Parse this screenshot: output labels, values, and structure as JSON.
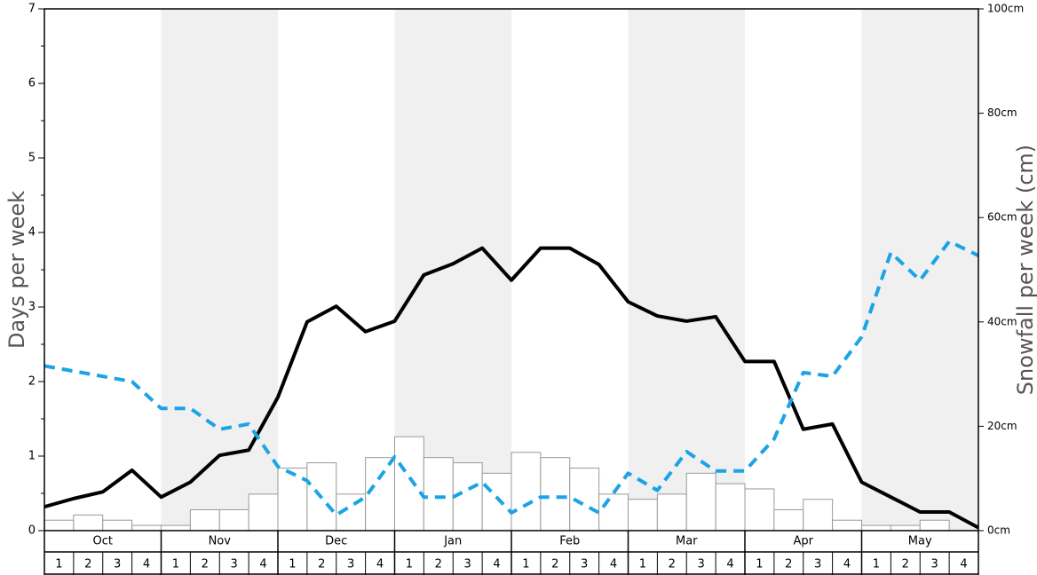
{
  "chart_data": {
    "type": "bar-line",
    "ylabel": "Days per week",
    "y2label": "Snowfall per week (cm)",
    "months": [
      "Oct",
      "Nov",
      "Dec",
      "Jan",
      "Feb",
      "Mar",
      "Apr",
      "May"
    ],
    "weeks": [
      1,
      2,
      3,
      4
    ],
    "shaded_months": [
      false,
      true,
      false,
      true,
      false,
      true,
      false,
      true
    ],
    "shade_color": "#f0f0f0",
    "ylim": [
      0,
      7
    ],
    "yticks": [
      0,
      1,
      2,
      3,
      4,
      5,
      6,
      7
    ],
    "y2lim": [
      0,
      100
    ],
    "y2ticks": [
      {
        "value": 0,
        "label": "0cm"
      },
      {
        "value": 20,
        "label": "20cm"
      },
      {
        "value": 40,
        "label": "40cm"
      },
      {
        "value": 60,
        "label": "60cm"
      },
      {
        "value": 80,
        "label": "80cm"
      },
      {
        "value": 100,
        "label": "100cm"
      }
    ],
    "bars": {
      "axis": "y2",
      "color": "#ffffff",
      "edge_color": "#999999",
      "values": [
        2,
        3,
        2,
        1,
        1,
        4,
        4,
        7,
        12,
        13,
        7,
        14,
        18,
        14,
        13,
        11,
        15,
        14,
        12,
        7,
        6,
        7,
        11,
        9,
        8,
        4,
        6,
        2,
        1,
        1,
        2,
        0
      ]
    },
    "series": [
      {
        "color": "#000000",
        "style": "solid",
        "values": [
          0.32,
          0.43,
          0.52,
          0.81,
          0.45,
          0.65,
          1.01,
          1.08,
          1.79,
          2.8,
          3.01,
          2.67,
          2.81,
          3.43,
          3.58,
          3.79,
          3.36,
          3.79,
          3.79,
          3.57,
          3.07,
          2.88,
          2.81,
          2.87,
          2.27,
          2.27,
          1.36,
          1.43,
          0.65,
          0.45,
          0.25,
          0.25,
          0.04
        ]
      },
      {
        "color": "#1ca3e6",
        "style": "dashed",
        "values": [
          2.21,
          2.14,
          2.07,
          2.0,
          1.64,
          1.64,
          1.36,
          1.43,
          0.86,
          0.67,
          0.21,
          0.45,
          0.99,
          0.45,
          0.45,
          0.65,
          0.24,
          0.45,
          0.45,
          0.24,
          0.77,
          0.54,
          1.06,
          0.8,
          0.8,
          1.23,
          2.12,
          2.07,
          2.6,
          3.73,
          3.36,
          3.88,
          3.69
        ]
      }
    ]
  }
}
